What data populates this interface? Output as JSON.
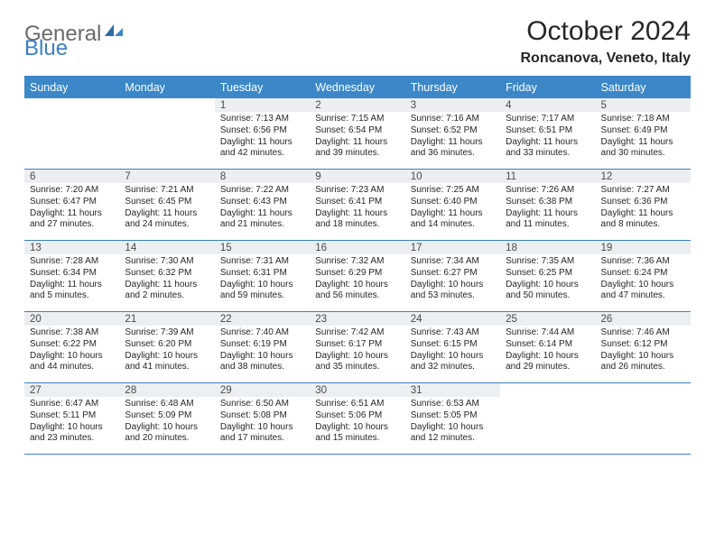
{
  "logo": {
    "gray": "General",
    "blue": "Blue"
  },
  "title": "October 2024",
  "location": "Roncanova, Veneto, Italy",
  "colors": {
    "header_bg": "#3b87c8",
    "border": "#3b7fc4",
    "daynum_bg": "#eceff1",
    "text": "#262626",
    "logo_gray": "#6b6b6b",
    "logo_blue": "#3b7fc4"
  },
  "dayNames": [
    "Sunday",
    "Monday",
    "Tuesday",
    "Wednesday",
    "Thursday",
    "Friday",
    "Saturday"
  ],
  "weeks": [
    [
      {
        "n": "",
        "sr": "",
        "ss": "",
        "dl": ""
      },
      {
        "n": "",
        "sr": "",
        "ss": "",
        "dl": ""
      },
      {
        "n": "1",
        "sr": "7:13 AM",
        "ss": "6:56 PM",
        "dl": "11 hours and 42 minutes."
      },
      {
        "n": "2",
        "sr": "7:15 AM",
        "ss": "6:54 PM",
        "dl": "11 hours and 39 minutes."
      },
      {
        "n": "3",
        "sr": "7:16 AM",
        "ss": "6:52 PM",
        "dl": "11 hours and 36 minutes."
      },
      {
        "n": "4",
        "sr": "7:17 AM",
        "ss": "6:51 PM",
        "dl": "11 hours and 33 minutes."
      },
      {
        "n": "5",
        "sr": "7:18 AM",
        "ss": "6:49 PM",
        "dl": "11 hours and 30 minutes."
      }
    ],
    [
      {
        "n": "6",
        "sr": "7:20 AM",
        "ss": "6:47 PM",
        "dl": "11 hours and 27 minutes."
      },
      {
        "n": "7",
        "sr": "7:21 AM",
        "ss": "6:45 PM",
        "dl": "11 hours and 24 minutes."
      },
      {
        "n": "8",
        "sr": "7:22 AM",
        "ss": "6:43 PM",
        "dl": "11 hours and 21 minutes."
      },
      {
        "n": "9",
        "sr": "7:23 AM",
        "ss": "6:41 PM",
        "dl": "11 hours and 18 minutes."
      },
      {
        "n": "10",
        "sr": "7:25 AM",
        "ss": "6:40 PM",
        "dl": "11 hours and 14 minutes."
      },
      {
        "n": "11",
        "sr": "7:26 AM",
        "ss": "6:38 PM",
        "dl": "11 hours and 11 minutes."
      },
      {
        "n": "12",
        "sr": "7:27 AM",
        "ss": "6:36 PM",
        "dl": "11 hours and 8 minutes."
      }
    ],
    [
      {
        "n": "13",
        "sr": "7:28 AM",
        "ss": "6:34 PM",
        "dl": "11 hours and 5 minutes."
      },
      {
        "n": "14",
        "sr": "7:30 AM",
        "ss": "6:32 PM",
        "dl": "11 hours and 2 minutes."
      },
      {
        "n": "15",
        "sr": "7:31 AM",
        "ss": "6:31 PM",
        "dl": "10 hours and 59 minutes."
      },
      {
        "n": "16",
        "sr": "7:32 AM",
        "ss": "6:29 PM",
        "dl": "10 hours and 56 minutes."
      },
      {
        "n": "17",
        "sr": "7:34 AM",
        "ss": "6:27 PM",
        "dl": "10 hours and 53 minutes."
      },
      {
        "n": "18",
        "sr": "7:35 AM",
        "ss": "6:25 PM",
        "dl": "10 hours and 50 minutes."
      },
      {
        "n": "19",
        "sr": "7:36 AM",
        "ss": "6:24 PM",
        "dl": "10 hours and 47 minutes."
      }
    ],
    [
      {
        "n": "20",
        "sr": "7:38 AM",
        "ss": "6:22 PM",
        "dl": "10 hours and 44 minutes."
      },
      {
        "n": "21",
        "sr": "7:39 AM",
        "ss": "6:20 PM",
        "dl": "10 hours and 41 minutes."
      },
      {
        "n": "22",
        "sr": "7:40 AM",
        "ss": "6:19 PM",
        "dl": "10 hours and 38 minutes."
      },
      {
        "n": "23",
        "sr": "7:42 AM",
        "ss": "6:17 PM",
        "dl": "10 hours and 35 minutes."
      },
      {
        "n": "24",
        "sr": "7:43 AM",
        "ss": "6:15 PM",
        "dl": "10 hours and 32 minutes."
      },
      {
        "n": "25",
        "sr": "7:44 AM",
        "ss": "6:14 PM",
        "dl": "10 hours and 29 minutes."
      },
      {
        "n": "26",
        "sr": "7:46 AM",
        "ss": "6:12 PM",
        "dl": "10 hours and 26 minutes."
      }
    ],
    [
      {
        "n": "27",
        "sr": "6:47 AM",
        "ss": "5:11 PM",
        "dl": "10 hours and 23 minutes."
      },
      {
        "n": "28",
        "sr": "6:48 AM",
        "ss": "5:09 PM",
        "dl": "10 hours and 20 minutes."
      },
      {
        "n": "29",
        "sr": "6:50 AM",
        "ss": "5:08 PM",
        "dl": "10 hours and 17 minutes."
      },
      {
        "n": "30",
        "sr": "6:51 AM",
        "ss": "5:06 PM",
        "dl": "10 hours and 15 minutes."
      },
      {
        "n": "31",
        "sr": "6:53 AM",
        "ss": "5:05 PM",
        "dl": "10 hours and 12 minutes."
      },
      {
        "n": "",
        "sr": "",
        "ss": "",
        "dl": ""
      },
      {
        "n": "",
        "sr": "",
        "ss": "",
        "dl": ""
      }
    ]
  ],
  "labels": {
    "sunrise": "Sunrise: ",
    "sunset": "Sunset: ",
    "daylight": "Daylight: "
  }
}
